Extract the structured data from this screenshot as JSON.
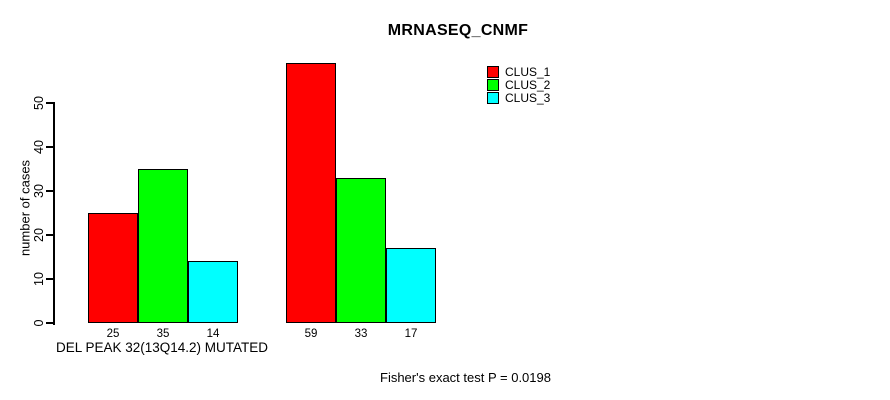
{
  "title": "MRNASEQ_CNMF",
  "y_axis": {
    "label": "number of cases",
    "ticks": [
      0,
      10,
      20,
      30,
      40,
      50
    ]
  },
  "x_axis": {
    "label": "DEL PEAK 32(13Q14.2) MUTATED"
  },
  "footnote": "Fisher's exact test P = 0.0198",
  "legend": [
    {
      "label": "CLUS_1",
      "color": "#FF0000"
    },
    {
      "label": "CLUS_2",
      "color": "#00FF00"
    },
    {
      "label": "CLUS_3",
      "color": "#00FFFF"
    }
  ],
  "chart_data": {
    "type": "bar",
    "title": "MRNASEQ_CNMF",
    "xlabel": "DEL PEAK 32(13Q14.2) MUTATED",
    "ylabel": "number of cases",
    "ylim": [
      0,
      50
    ],
    "yticks": [
      0,
      10,
      20,
      30,
      40,
      50
    ],
    "grid": false,
    "legend_position": "top-right",
    "categories": [
      "DEL PEAK 32(13Q14.2) MUTATED",
      ""
    ],
    "series": [
      {
        "name": "CLUS_1",
        "color": "#FF0000",
        "values": [
          25,
          59
        ]
      },
      {
        "name": "CLUS_2",
        "color": "#00FF00",
        "values": [
          35,
          33
        ]
      },
      {
        "name": "CLUS_3",
        "color": "#00FFFF",
        "values": [
          14,
          17
        ]
      }
    ],
    "bar_value_labels": [
      [
        25,
        35,
        14
      ],
      [
        59,
        33,
        17
      ]
    ],
    "annotation": "Fisher's exact test P = 0.0198"
  }
}
